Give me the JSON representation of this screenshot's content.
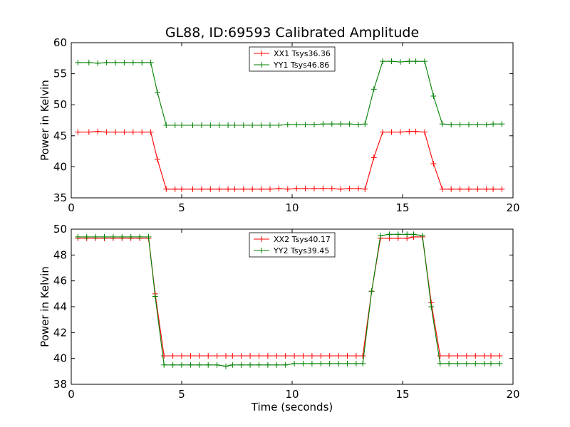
{
  "figure": {
    "title": "GL88, ID:69593 Calibrated Amplitude"
  },
  "chart_data": [
    {
      "type": "line",
      "title": "GL88, ID:69593 Calibrated Amplitude",
      "xlabel": "",
      "ylabel": "Power in Kelvin",
      "xlim": [
        0,
        20
      ],
      "ylim": [
        35,
        60
      ],
      "xticks": [
        0,
        5,
        10,
        15,
        20
      ],
      "yticks": [
        35,
        40,
        45,
        50,
        55,
        60
      ],
      "legend_position": "top-center",
      "grid": false,
      "series": [
        {
          "name": "XX1 Tsys36.36",
          "color": "#ff0000",
          "x": [
            0.3,
            0.8,
            1.2,
            1.6,
            2.0,
            2.4,
            2.8,
            3.2,
            3.6,
            3.9,
            4.3,
            4.7,
            5.0,
            5.5,
            5.9,
            6.3,
            6.7,
            7.1,
            7.4,
            7.8,
            8.2,
            8.6,
            9.0,
            9.4,
            9.8,
            10.2,
            10.6,
            11.0,
            11.4,
            11.8,
            12.2,
            12.6,
            13.0,
            13.3,
            13.7,
            14.1,
            14.5,
            14.9,
            15.3,
            15.6,
            16.0,
            16.4,
            16.8,
            17.2,
            17.6,
            18.0,
            18.4,
            18.8,
            19.1,
            19.5
          ],
          "y": [
            45.6,
            45.6,
            45.7,
            45.6,
            45.6,
            45.6,
            45.6,
            45.6,
            45.6,
            41.2,
            36.4,
            36.4,
            36.4,
            36.4,
            36.4,
            36.4,
            36.4,
            36.4,
            36.4,
            36.4,
            36.4,
            36.4,
            36.4,
            36.5,
            36.4,
            36.5,
            36.5,
            36.5,
            36.5,
            36.5,
            36.4,
            36.5,
            36.5,
            36.4,
            41.5,
            45.6,
            45.6,
            45.6,
            45.7,
            45.7,
            45.6,
            40.5,
            36.4,
            36.4,
            36.4,
            36.4,
            36.4,
            36.4,
            36.4,
            36.4
          ]
        },
        {
          "name": "YY1 Tsys46.86",
          "color": "#008000",
          "x": [
            0.3,
            0.8,
            1.2,
            1.6,
            2.0,
            2.4,
            2.8,
            3.2,
            3.6,
            3.9,
            4.3,
            4.7,
            5.0,
            5.5,
            5.9,
            6.3,
            6.7,
            7.1,
            7.4,
            7.8,
            8.2,
            8.6,
            9.0,
            9.4,
            9.8,
            10.2,
            10.6,
            11.0,
            11.4,
            11.8,
            12.2,
            12.6,
            13.0,
            13.3,
            13.7,
            14.1,
            14.5,
            14.9,
            15.3,
            15.6,
            16.0,
            16.4,
            16.8,
            17.2,
            17.6,
            18.0,
            18.4,
            18.8,
            19.1,
            19.5
          ],
          "y": [
            56.8,
            56.8,
            56.7,
            56.8,
            56.8,
            56.8,
            56.8,
            56.8,
            56.8,
            52.0,
            46.7,
            46.7,
            46.7,
            46.7,
            46.7,
            46.7,
            46.7,
            46.7,
            46.7,
            46.7,
            46.7,
            46.7,
            46.7,
            46.7,
            46.8,
            46.8,
            46.8,
            46.8,
            46.9,
            46.9,
            46.9,
            46.9,
            46.8,
            46.9,
            52.5,
            57.0,
            57.0,
            56.9,
            57.0,
            57.0,
            57.0,
            51.4,
            46.9,
            46.8,
            46.8,
            46.8,
            46.8,
            46.8,
            46.9,
            46.9
          ]
        }
      ]
    },
    {
      "type": "line",
      "title": "",
      "xlabel": "Time (seconds)",
      "ylabel": "Power in Kelvin",
      "xlim": [
        0,
        20
      ],
      "ylim": [
        38,
        50
      ],
      "xticks": [
        0,
        5,
        10,
        15,
        20
      ],
      "yticks": [
        38,
        40,
        42,
        44,
        46,
        48,
        50
      ],
      "legend_position": "top-center",
      "grid": false,
      "series": [
        {
          "name": "XX2 Tsys40.17",
          "color": "#ff0000",
          "x": [
            0.3,
            0.7,
            1.1,
            1.5,
            1.9,
            2.3,
            2.7,
            3.1,
            3.5,
            3.8,
            4.2,
            4.6,
            5.0,
            5.4,
            5.8,
            6.2,
            6.6,
            7.0,
            7.3,
            7.7,
            8.1,
            8.5,
            8.9,
            9.3,
            9.7,
            10.1,
            10.5,
            10.9,
            11.3,
            11.7,
            12.1,
            12.5,
            12.9,
            13.2,
            13.6,
            14.0,
            14.4,
            14.8,
            15.2,
            15.5,
            15.9,
            16.3,
            16.7,
            17.1,
            17.5,
            17.9,
            18.3,
            18.7,
            19.0,
            19.4
          ],
          "y": [
            49.3,
            49.3,
            49.3,
            49.3,
            49.3,
            49.3,
            49.3,
            49.3,
            49.3,
            45.0,
            40.2,
            40.2,
            40.2,
            40.2,
            40.2,
            40.2,
            40.2,
            40.2,
            40.2,
            40.2,
            40.2,
            40.2,
            40.2,
            40.2,
            40.2,
            40.2,
            40.2,
            40.2,
            40.2,
            40.2,
            40.2,
            40.2,
            40.2,
            40.2,
            45.2,
            49.3,
            49.3,
            49.3,
            49.3,
            49.4,
            49.4,
            44.3,
            40.2,
            40.2,
            40.2,
            40.2,
            40.2,
            40.2,
            40.2,
            40.2
          ]
        },
        {
          "name": "YY2 Tsys39.45",
          "color": "#008000",
          "x": [
            0.3,
            0.7,
            1.1,
            1.5,
            1.9,
            2.3,
            2.7,
            3.1,
            3.5,
            3.8,
            4.2,
            4.6,
            5.0,
            5.4,
            5.8,
            6.2,
            6.6,
            7.0,
            7.3,
            7.7,
            8.1,
            8.5,
            8.9,
            9.3,
            9.7,
            10.1,
            10.5,
            10.9,
            11.3,
            11.7,
            12.1,
            12.5,
            12.9,
            13.2,
            13.6,
            14.0,
            14.4,
            14.8,
            15.2,
            15.5,
            15.9,
            16.3,
            16.7,
            17.1,
            17.5,
            17.9,
            18.3,
            18.7,
            19.0,
            19.4
          ],
          "y": [
            49.4,
            49.4,
            49.4,
            49.4,
            49.4,
            49.4,
            49.4,
            49.4,
            49.4,
            44.8,
            39.5,
            39.5,
            39.5,
            39.5,
            39.5,
            39.5,
            39.5,
            39.4,
            39.5,
            39.5,
            39.5,
            39.5,
            39.5,
            39.5,
            39.5,
            39.6,
            39.6,
            39.6,
            39.6,
            39.6,
            39.6,
            39.6,
            39.6,
            39.6,
            45.2,
            49.5,
            49.6,
            49.6,
            49.6,
            49.6,
            49.5,
            44.0,
            39.6,
            39.6,
            39.6,
            39.6,
            39.6,
            39.6,
            39.6,
            39.6
          ]
        }
      ]
    }
  ]
}
